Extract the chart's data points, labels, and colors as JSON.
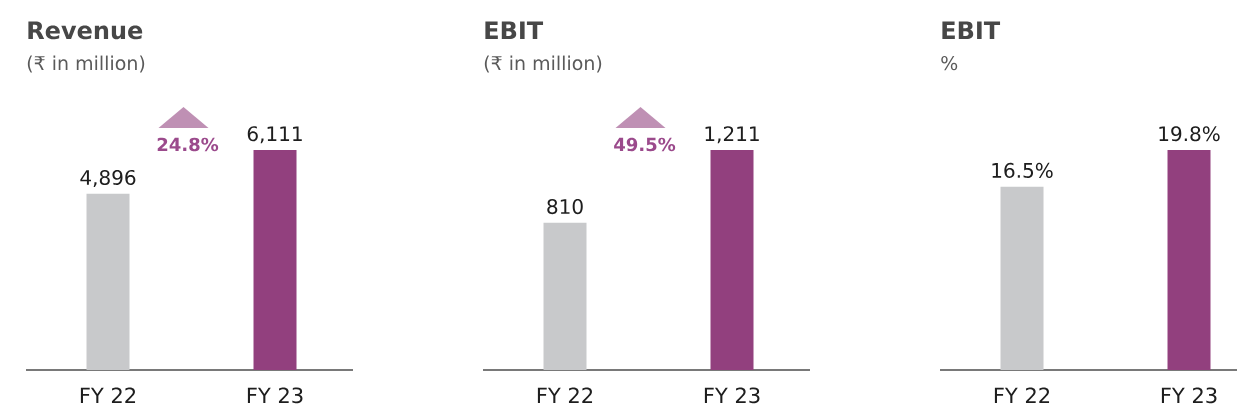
{
  "chart_data": [
    {
      "type": "bar",
      "title": "Revenue",
      "subtitle": "(₹ in million)",
      "categories": [
        "FY 22",
        "FY 23"
      ],
      "values": [
        4896,
        6111
      ],
      "colors": [
        "#c8c9cb",
        "#92407e"
      ],
      "value_labels": [
        "4,896",
        "6,111"
      ],
      "annotations": [
        "24.8%"
      ]
    },
    {
      "type": "bar",
      "title": "EBIT",
      "subtitle": "(₹ in million)",
      "categories": [
        "FY 22",
        "FY 23"
      ],
      "values": [
        810,
        1211
      ],
      "colors": [
        "#c8c9cb",
        "#92407e"
      ],
      "value_labels": [
        "810",
        "1,211"
      ],
      "annotations": [
        "49.5%"
      ]
    },
    {
      "type": "bar",
      "title": "EBIT",
      "subtitle": "%",
      "categories": [
        "FY 22",
        "FY 23"
      ],
      "values": [
        16.5,
        19.8
      ],
      "colors": [
        "#c8c9cb",
        "#92407e"
      ],
      "value_labels": [
        "16.5%",
        "19.8%"
      ]
    }
  ]
}
